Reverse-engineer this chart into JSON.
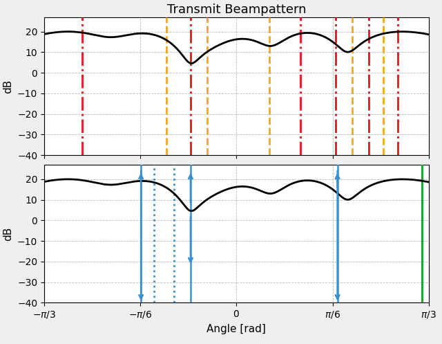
{
  "title": "Transmit Beampattern",
  "xlabel": "Angle [rad]",
  "ylabel": "dB",
  "xlim": [
    -1.0472,
    1.0472
  ],
  "ylim": [
    -40,
    27
  ],
  "yticks": [
    -40,
    -30,
    -20,
    -10,
    0,
    10,
    20
  ],
  "xtick_positions": [
    -1.0472,
    -0.5236,
    0.0,
    0.5236,
    1.0472
  ],
  "xtick_labels": [
    "-\\pi/3",
    "-\\pi/6",
    "0",
    "\\pi/6",
    "\\pi/3"
  ],
  "top_red_vlines": [
    -0.84,
    -0.25,
    0.35,
    0.54,
    0.72,
    0.88
  ],
  "top_orange_vlines": [
    -0.38,
    -0.16,
    0.18,
    0.63,
    0.8
  ],
  "bottom_blue_solid_vlines": [
    -0.52,
    -0.25,
    0.55
  ],
  "bottom_blue_dotted_vlines": [
    -0.45,
    -0.34
  ],
  "bottom_green_vline": 1.01,
  "curve_color": "#000000",
  "curve_linewidth": 2.0,
  "top_red_color": "#e8232a",
  "top_orange_color": "#f5a623",
  "bottom_blue_color": "#3a8fce",
  "bottom_green_color": "#2ca02c",
  "grid_color": "#bbbbbb",
  "background_color": "#ffffff",
  "fig_bgcolor": "#efefef"
}
